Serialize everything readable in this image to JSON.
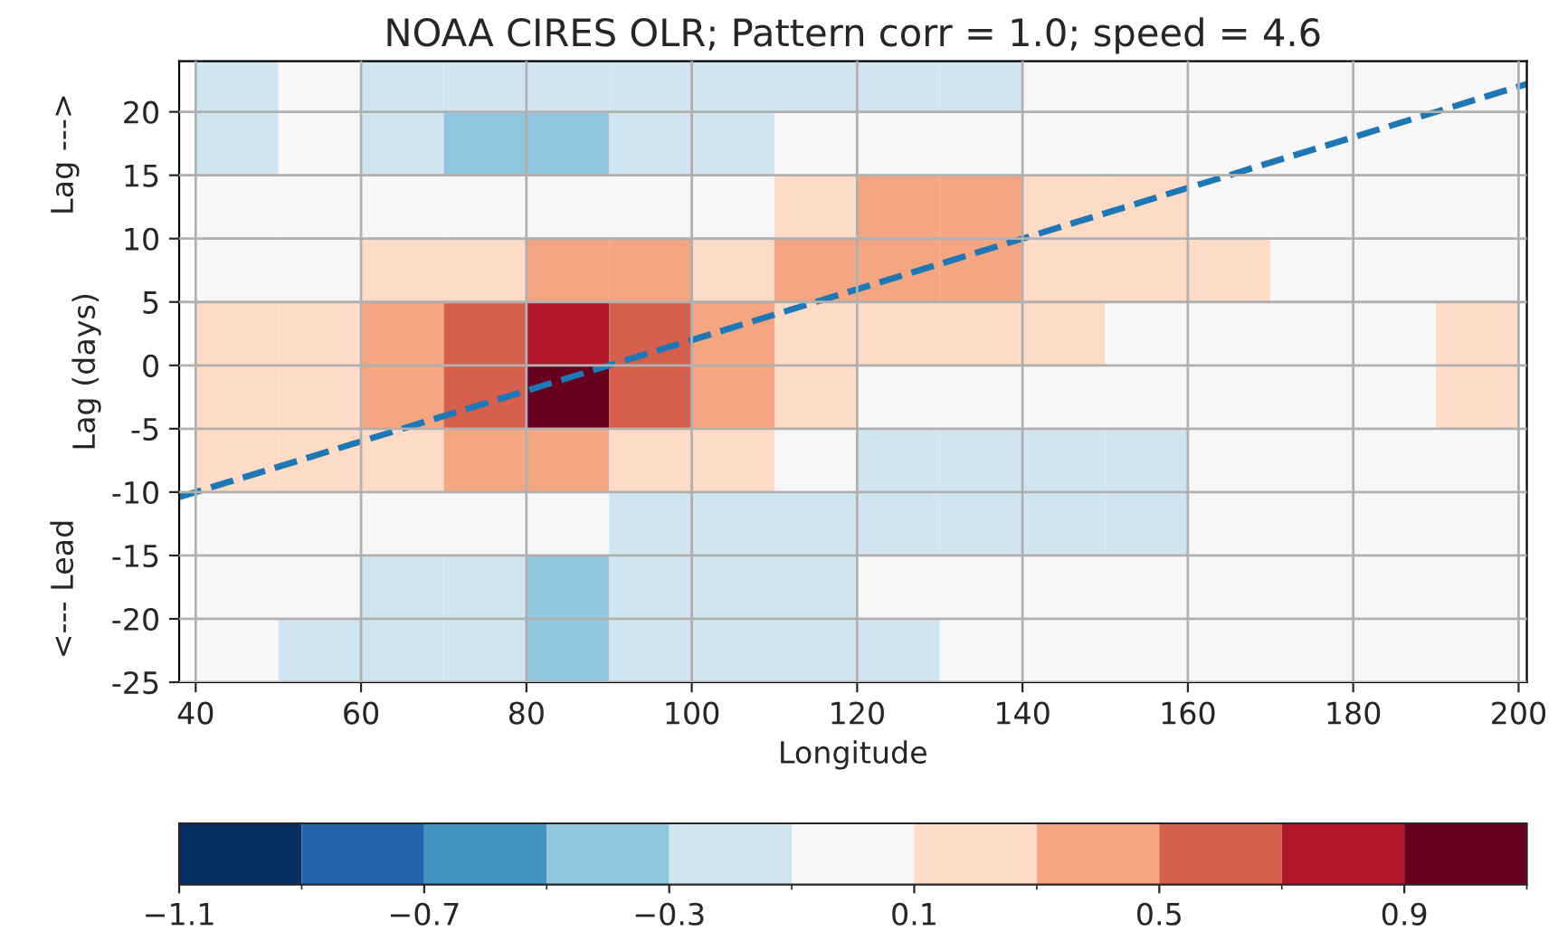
{
  "chart_data": {
    "type": "heatmap",
    "title": "NOAA CIRES OLR; Pattern corr = 1.0; speed = 4.6",
    "xlabel": "Longitude",
    "ylabel": "Lag (days)",
    "annotations": [
      "Lag --->",
      "<--- Lead"
    ],
    "x": [
      45,
      55,
      65,
      75,
      85,
      95,
      105,
      115,
      125,
      135,
      145,
      155,
      165,
      175,
      185,
      195
    ],
    "y": [
      22.5,
      17.5,
      12.5,
      7.5,
      2.5,
      -2.5,
      -7.5,
      -12.5,
      -17.5,
      -22.5
    ],
    "cells": [
      [
        -0.2,
        0,
        -0.2,
        -0.2,
        -0.2,
        -0.2,
        -0.2,
        -0.2,
        -0.2,
        -0.2,
        0,
        0,
        0,
        0,
        0,
        0
      ],
      [
        -0.2,
        0,
        -0.2,
        -0.4,
        -0.4,
        -0.2,
        -0.2,
        0,
        0,
        0,
        0,
        0,
        0,
        0,
        0,
        0
      ],
      [
        0,
        0,
        0,
        0,
        0,
        0,
        0,
        0.2,
        0.4,
        0.4,
        0.2,
        0.2,
        0,
        0,
        0,
        0
      ],
      [
        0,
        0,
        0.2,
        0.2,
        0.4,
        0.4,
        0.2,
        0.4,
        0.4,
        0.4,
        0.2,
        0.2,
        0.2,
        0,
        0,
        0
      ],
      [
        0.2,
        0.2,
        0.4,
        0.6,
        0.8,
        0.6,
        0.4,
        0.2,
        0.2,
        0.2,
        0.2,
        0,
        0,
        0,
        0,
        0.2
      ],
      [
        0.2,
        0.2,
        0.4,
        0.6,
        1.0,
        0.6,
        0.4,
        0.2,
        0,
        0,
        0,
        0,
        0,
        0,
        0,
        0.2
      ],
      [
        0.2,
        0.2,
        0.2,
        0.4,
        0.4,
        0.2,
        0.2,
        0,
        -0.2,
        -0.2,
        -0.2,
        -0.2,
        0,
        0,
        0,
        0
      ],
      [
        0,
        0,
        0,
        0,
        0,
        -0.2,
        -0.2,
        -0.2,
        -0.2,
        -0.2,
        -0.2,
        -0.2,
        0,
        0,
        0,
        0
      ],
      [
        0,
        0,
        -0.2,
        -0.2,
        -0.4,
        -0.2,
        -0.2,
        -0.2,
        0,
        0,
        0,
        0,
        0,
        0,
        0,
        0
      ],
      [
        0,
        -0.2,
        -0.2,
        -0.2,
        -0.4,
        -0.2,
        -0.2,
        -0.2,
        -0.2,
        0,
        0,
        0,
        0,
        0,
        0,
        0
      ]
    ],
    "colors": [
      "#053061",
      "#2166ac",
      "#4393c3",
      "#92c5de",
      "#d1e5f0",
      "#f7f7f7",
      "#fddbc7",
      "#f4a582",
      "#d6604d",
      "#b2182b",
      "#67001f"
    ],
    "clim": [
      -1.1,
      1.1
    ],
    "cticks": [
      -1.1,
      -0.7,
      -0.3,
      0.1,
      0.5,
      0.9
    ],
    "series": [
      {
        "type": "line",
        "color": "#1f77b4",
        "line_style": "dashed",
        "x": [
          38,
          201
        ],
        "values": [
          -10.4,
          22.2
        ]
      }
    ],
    "xlim": [
      38,
      201
    ],
    "ylim": [
      -25,
      24
    ],
    "xticks": [
      40,
      60,
      80,
      100,
      120,
      140,
      160,
      180,
      200
    ],
    "yticks": [
      -25,
      -20,
      -15,
      -10,
      -5,
      0,
      5,
      10,
      15,
      20
    ],
    "grid": true
  }
}
